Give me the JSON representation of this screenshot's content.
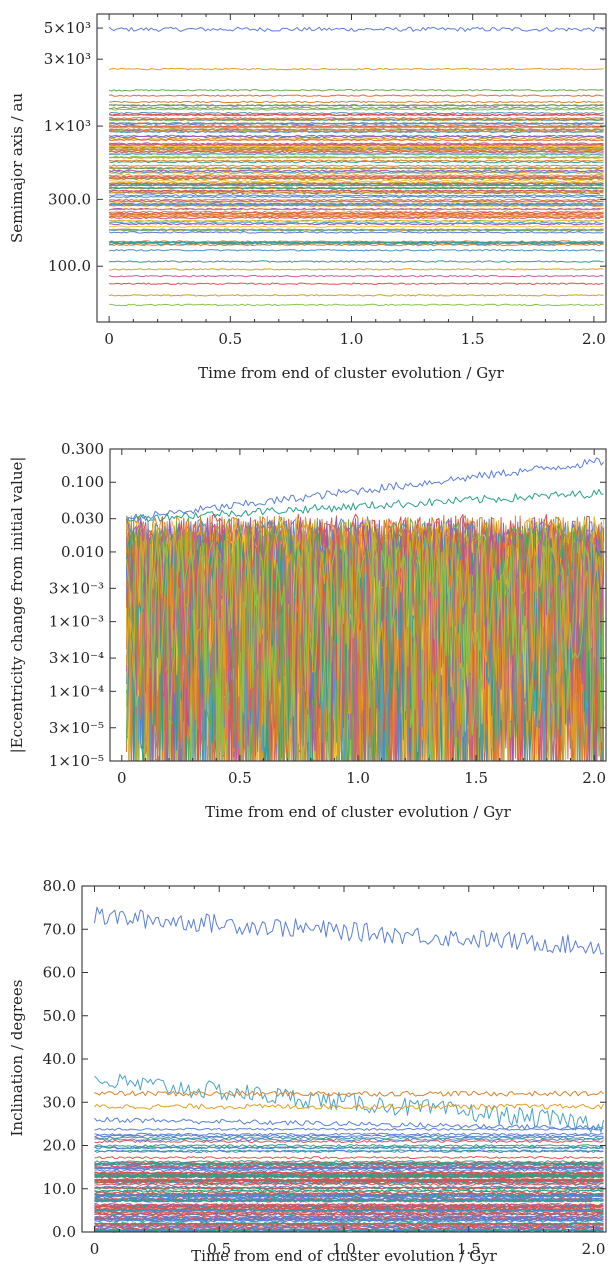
{
  "chart_data": [
    {
      "type": "line",
      "title": "",
      "xlabel": "Time from end of cluster evolution / Gyr",
      "ylabel": "Semimajor axis / au",
      "yscale": "log",
      "xlim": [
        -0.05,
        2.05
      ],
      "ylim": [
        40,
        6300
      ],
      "xticks": [
        0,
        0.5,
        1.0,
        1.5,
        2.0
      ],
      "xtick_labels": [
        "0",
        "0.5",
        "1.0",
        "1.5",
        "2.0"
      ],
      "yticks": [
        100,
        300,
        1000,
        3000,
        5000
      ],
      "ytick_labels": [
        "100.0",
        "300.0",
        "1×10³",
        "3×10³",
        "5×10³"
      ],
      "grid": false,
      "series_count": 120,
      "series": [
        {
          "values_level": 4900,
          "color": "#5b7fd6"
        },
        {
          "values_level": 2550,
          "color": "#e0a020"
        },
        {
          "values_level": 1800,
          "color": "#6aa84f"
        },
        {
          "values_level": 1650,
          "color": "#e07030"
        },
        {
          "values_level": 1400,
          "color": "#9b59b6"
        },
        {
          "values_level": 1200,
          "color": "#e05050"
        },
        {
          "values_level": 1000,
          "color": "#d4a017"
        },
        {
          "values_level": 850,
          "color": "#4a90c0"
        },
        {
          "values_level": 700,
          "color": "#e06030"
        },
        {
          "values_level": 600,
          "color": "#8bc34a"
        },
        {
          "values_level": 500,
          "color": "#c75b8f"
        },
        {
          "values_level": 420,
          "color": "#2ca089"
        },
        {
          "values_level": 360,
          "color": "#e08040"
        },
        {
          "values_level": 320,
          "color": "#5b7fd6"
        },
        {
          "values_level": 270,
          "color": "#f1c232"
        },
        {
          "values_level": 230,
          "color": "#e05050"
        },
        {
          "values_level": 200,
          "color": "#9b59b6"
        },
        {
          "values_level": 180,
          "color": "#6aa84f"
        },
        {
          "values_level": 150,
          "color": "#e07030"
        },
        {
          "values_level": 130,
          "color": "#4a90c0"
        },
        {
          "values_level": 108,
          "color": "#2ca089"
        },
        {
          "values_level": 95,
          "color": "#e0a020"
        },
        {
          "values_level": 85,
          "color": "#c75b8f"
        },
        {
          "values_level": 75,
          "color": "#e05050"
        },
        {
          "values_level": 62,
          "color": "#d4a017"
        },
        {
          "values_level": 53,
          "color": "#8bc34a"
        }
      ]
    },
    {
      "type": "line",
      "title": "",
      "xlabel": "Time from end of cluster evolution / Gyr",
      "ylabel": "|Eccentricity change from initial value|",
      "yscale": "log",
      "xlim": [
        -0.05,
        2.05
      ],
      "ylim": [
        1e-05,
        0.3
      ],
      "xticks": [
        0,
        0.5,
        1.0,
        1.5,
        2.0
      ],
      "xtick_labels": [
        "0",
        "0.5",
        "1.0",
        "1.5",
        "2.0"
      ],
      "yticks": [
        1e-05,
        3e-05,
        0.0001,
        0.0003,
        0.001,
        0.003,
        0.01,
        0.03,
        0.1,
        0.3
      ],
      "ytick_labels": [
        "1×10⁻⁵",
        "3×10⁻⁵",
        "1×10⁻⁴",
        "3×10⁻⁴",
        "1×10⁻³",
        "3×10⁻³",
        "0.010",
        "0.030",
        "0.100",
        "0.300"
      ],
      "grid": false,
      "series_count": 120,
      "notable_series": [
        {
          "description_color": "#5b7fd6",
          "start": 0.03,
          "end": 0.2
        },
        {
          "description_color": "#2ca089",
          "start": 0.03,
          "end": 0.07
        }
      ]
    },
    {
      "type": "line",
      "title": "",
      "xlabel": "Time from end of cluster evolution / Gyr",
      "ylabel": "Inclination / degrees",
      "yscale": "linear",
      "xlim": [
        -0.05,
        2.05
      ],
      "ylim": [
        0,
        80
      ],
      "xticks": [
        0,
        0.5,
        1.0,
        1.5,
        2.0
      ],
      "xtick_labels": [
        "0",
        "0.5",
        "1.0",
        "1.5",
        "2.0"
      ],
      "yticks": [
        0,
        10,
        20,
        30,
        40,
        50,
        60,
        70,
        80
      ],
      "ytick_labels": [
        "0.0",
        "10.0",
        "20.0",
        "30.0",
        "40.0",
        "50.0",
        "60.0",
        "70.0",
        "80.0"
      ],
      "grid": false,
      "series_count": 120,
      "notable_series": [
        {
          "color": "#5b7fd6",
          "start": 73,
          "end": 66
        },
        {
          "color": "#4aa3c8",
          "start": 35,
          "end": 25
        },
        {
          "color": "#d9822b",
          "start": 32,
          "end": 32
        },
        {
          "color": "#e0a020",
          "start": 29,
          "end": 29
        },
        {
          "color": "#5b7fd6",
          "start": 26,
          "end": 24
        }
      ]
    }
  ]
}
